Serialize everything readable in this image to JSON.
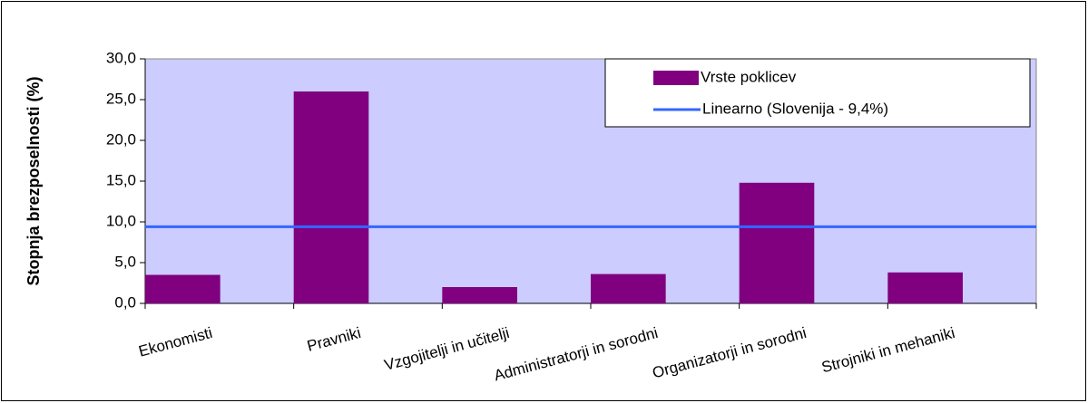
{
  "chart_data": {
    "type": "bar",
    "y_label": "Stopnja brezposelnosti (%)",
    "categories": [
      "Ekonomisti",
      "Pravniki",
      "Vzgojitelji in učitelji",
      "Administratorji in sorodni",
      "Organizatorji in sorodni",
      "Strojniki in mehaniki"
    ],
    "series": [
      {
        "name": "Vrste poklicev",
        "color": "#800080",
        "values": [
          3.5,
          26.0,
          2.0,
          3.6,
          14.8,
          3.8
        ]
      }
    ],
    "reference_line": {
      "name": "Linearno (Slovenija - 9,4%)",
      "value": 9.4,
      "color": "#3366ff"
    },
    "ylim": [
      0,
      30
    ],
    "yticks": [
      {
        "value": 0,
        "label": "0,0"
      },
      {
        "value": 5,
        "label": "5,0"
      },
      {
        "value": 10,
        "label": "10,0"
      },
      {
        "value": 15,
        "label": "15,0"
      },
      {
        "value": 20,
        "label": "20,0"
      },
      {
        "value": 25,
        "label": "25,0"
      },
      {
        "value": 30,
        "label": "30,0"
      }
    ],
    "legend": "upper right"
  }
}
